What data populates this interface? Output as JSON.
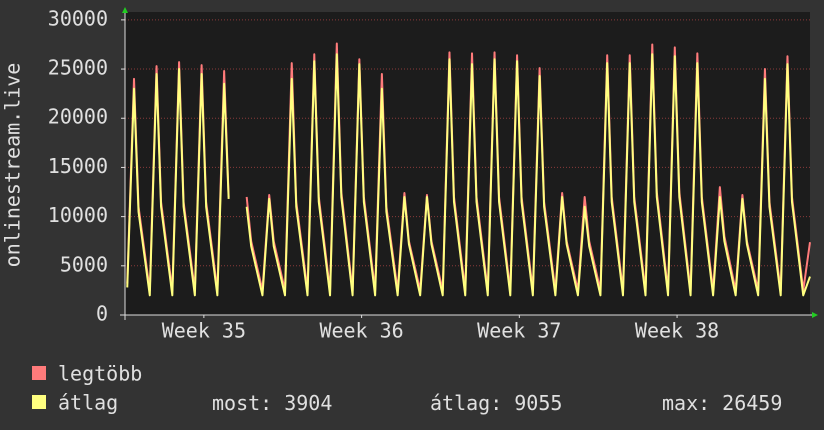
{
  "chart_data": {
    "type": "line",
    "y_label": "onlinestream.live",
    "x": [
      0.1,
      0.4,
      0.6,
      1.1,
      1.4,
      1.6,
      2.1,
      2.4,
      2.6,
      3.1,
      3.4,
      3.6,
      4.1,
      4.4,
      4.6,
      5.1,
      5.4,
      5.6,
      6.1,
      6.4,
      6.6,
      7.1,
      7.4,
      7.6,
      8.1,
      8.4,
      8.6,
      9.1,
      9.4,
      9.6,
      10.1,
      10.4,
      10.6,
      11.1,
      11.4,
      11.6,
      12.1,
      12.4,
      12.6,
      13.1,
      13.4,
      13.6,
      14.1,
      14.4,
      14.6,
      15.1,
      15.4,
      15.6,
      16.1,
      16.4,
      16.6,
      17.1,
      17.4,
      17.6,
      18.1,
      18.4,
      18.6,
      19.1,
      19.4,
      19.6,
      20.1,
      20.4,
      20.6,
      21.1,
      21.4,
      21.6,
      22.1,
      22.4,
      22.6,
      23.1,
      23.4,
      23.6,
      24.1,
      24.4,
      24.6,
      25.1,
      25.4,
      25.6,
      26.1,
      26.4,
      26.6,
      27.1,
      27.4,
      27.6,
      28.1,
      28.4,
      28.6,
      29.1,
      29.4,
      29.6,
      30.1,
      30.4
    ],
    "series": [
      {
        "name": "legtöbb",
        "color": "#ff7b7b",
        "values": [
          3200,
          24000,
          11000,
          2500,
          25300,
          11500,
          2500,
          25700,
          11500,
          2500,
          25400,
          11500,
          2500,
          24800,
          12000,
          null,
          12000,
          7500,
          2500,
          12200,
          7500,
          2500,
          25600,
          11500,
          2500,
          26500,
          12000,
          2500,
          27600,
          12500,
          2500,
          26000,
          12000,
          2500,
          24500,
          11000,
          2500,
          12400,
          7500,
          2500,
          12200,
          7500,
          2500,
          26700,
          12000,
          2500,
          26600,
          12000,
          2500,
          26700,
          12000,
          2500,
          26400,
          12000,
          2500,
          25100,
          11500,
          2500,
          12400,
          7500,
          2500,
          12000,
          7500,
          2500,
          26400,
          12000,
          2500,
          26400,
          12000,
          2500,
          27500,
          12500,
          2500,
          27200,
          12500,
          2500,
          26600,
          12000,
          2500,
          13000,
          8000,
          2500,
          12200,
          7500,
          2500,
          25000,
          11500,
          2500,
          26300,
          12000,
          2500,
          7400
        ]
      },
      {
        "name": "átlag",
        "color": "#ffff80",
        "values": [
          2800,
          23000,
          10500,
          2000,
          24500,
          11000,
          2000,
          25000,
          11000,
          2000,
          24500,
          11000,
          2000,
          23500,
          11800,
          null,
          11000,
          7000,
          2000,
          11800,
          7000,
          2000,
          24000,
          11000,
          2000,
          25800,
          11500,
          2000,
          26500,
          12000,
          2000,
          25500,
          11500,
          2000,
          23000,
          10500,
          2000,
          12000,
          7200,
          2000,
          12000,
          7200,
          2000,
          26000,
          11500,
          2000,
          25500,
          11500,
          2000,
          26000,
          11500,
          2000,
          25800,
          11500,
          2000,
          24300,
          11000,
          2000,
          12000,
          7200,
          2000,
          11000,
          7000,
          2000,
          25600,
          11500,
          2000,
          25600,
          11500,
          2000,
          26500,
          12000,
          2000,
          26300,
          12000,
          2000,
          25600,
          11500,
          2000,
          12000,
          7500,
          2000,
          11800,
          7200,
          2000,
          24000,
          11000,
          2000,
          25500,
          11500,
          2000,
          3904
        ]
      }
    ],
    "xlim": [
      0,
      30.4
    ],
    "xticks": [
      {
        "value": 3.5,
        "label": "Week 35"
      },
      {
        "value": 10.5,
        "label": "Week 36"
      },
      {
        "value": 17.5,
        "label": "Week 37"
      },
      {
        "value": 24.5,
        "label": "Week 38"
      }
    ],
    "ylim": [
      0,
      30800
    ],
    "yticks": [
      0,
      5000,
      10000,
      15000,
      20000,
      25000,
      30000
    ],
    "grid": true,
    "grid_color": "#8a3a3a",
    "stats": [
      {
        "label": "most:",
        "value": 3904
      },
      {
        "label": "átlag:",
        "value": 9055
      },
      {
        "label": "max:",
        "value": 26459
      }
    ]
  }
}
